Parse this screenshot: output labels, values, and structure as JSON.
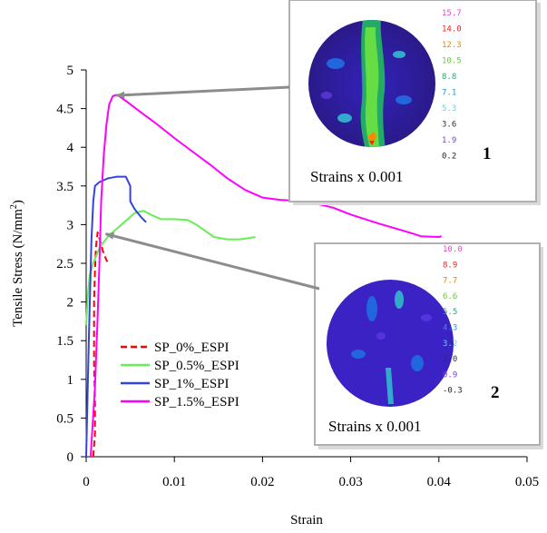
{
  "chart_data": {
    "type": "line",
    "xlabel": "Strain",
    "ylabel": "Tensile Stress (N/mm",
    "ylabel_sup": "2",
    "ylabel_close": ")",
    "xlim": [
      0,
      0.05
    ],
    "ylim": [
      0,
      5
    ],
    "x_ticks": [
      "0",
      "0.01",
      "0.02",
      "0.03",
      "0.04",
      "0.05"
    ],
    "y_ticks": [
      "0",
      "0.5",
      "1",
      "1.5",
      "2",
      "2.5",
      "3",
      "3.5",
      "4",
      "4.5",
      "5"
    ],
    "legend_placement": "lower-left",
    "series": [
      {
        "name": "SP_0%_ESPI",
        "color": "#ff0000",
        "dash": "dashed",
        "points": [
          [
            0.0008,
            0
          ],
          [
            0.001,
            0.3
          ],
          [
            0.001,
            0.7
          ],
          [
            0.0009,
            1.2
          ],
          [
            0.0009,
            1.6
          ],
          [
            0.0009,
            2.0
          ],
          [
            0.001,
            2.4
          ],
          [
            0.0011,
            2.7
          ],
          [
            0.0013,
            2.9
          ],
          [
            0.0016,
            2.78
          ],
          [
            0.002,
            2.62
          ],
          [
            0.0024,
            2.52
          ]
        ]
      },
      {
        "name": "SP_0.5%_ESPI",
        "color": "#66ee55",
        "dash": "solid",
        "points": [
          [
            0,
            1.7
          ],
          [
            0.0002,
            2.1
          ],
          [
            0.0004,
            2.35
          ],
          [
            0.0008,
            2.5
          ],
          [
            0.0015,
            2.7
          ],
          [
            0.0025,
            2.85
          ],
          [
            0.0035,
            2.95
          ],
          [
            0.0045,
            3.05
          ],
          [
            0.0055,
            3.15
          ],
          [
            0.0065,
            3.18
          ],
          [
            0.0075,
            3.12
          ],
          [
            0.0085,
            3.07
          ],
          [
            0.01,
            3.07
          ],
          [
            0.0115,
            3.06
          ],
          [
            0.0125,
            3.0
          ],
          [
            0.0135,
            2.92
          ],
          [
            0.0145,
            2.84
          ],
          [
            0.016,
            2.81
          ],
          [
            0.0175,
            2.81
          ],
          [
            0.0192,
            2.84
          ]
        ]
      },
      {
        "name": "SP_1%_ESPI",
        "color": "#3344dd",
        "dash": "solid",
        "points": [
          [
            0,
            0
          ],
          [
            0.0003,
            1.5
          ],
          [
            0.0006,
            2.8
          ],
          [
            0.0008,
            3.3
          ],
          [
            0.001,
            3.5
          ],
          [
            0.0015,
            3.55
          ],
          [
            0.0025,
            3.6
          ],
          [
            0.0035,
            3.62
          ],
          [
            0.0045,
            3.62
          ],
          [
            0.005,
            3.5
          ],
          [
            0.005,
            3.3
          ],
          [
            0.0055,
            3.2
          ],
          [
            0.0062,
            3.1
          ],
          [
            0.0068,
            3.03
          ]
        ]
      },
      {
        "name": "SP_1.5%_ESPI",
        "color": "#ff00ff",
        "dash": "solid",
        "points": [
          [
            0.0005,
            0
          ],
          [
            0.001,
            0.9
          ],
          [
            0.0013,
            1.8
          ],
          [
            0.0015,
            2.5
          ],
          [
            0.0017,
            3.3
          ],
          [
            0.002,
            3.9
          ],
          [
            0.0023,
            4.3
          ],
          [
            0.0026,
            4.55
          ],
          [
            0.003,
            4.66
          ],
          [
            0.0035,
            4.68
          ],
          [
            0.0045,
            4.6
          ],
          [
            0.006,
            4.47
          ],
          [
            0.008,
            4.3
          ],
          [
            0.01,
            4.12
          ],
          [
            0.012,
            3.95
          ],
          [
            0.014,
            3.78
          ],
          [
            0.016,
            3.6
          ],
          [
            0.018,
            3.45
          ],
          [
            0.02,
            3.35
          ],
          [
            0.022,
            3.32
          ],
          [
            0.025,
            3.3
          ],
          [
            0.028,
            3.22
          ],
          [
            0.03,
            3.13
          ],
          [
            0.033,
            3.02
          ],
          [
            0.036,
            2.92
          ],
          [
            0.038,
            2.85
          ],
          [
            0.04,
            2.84
          ],
          [
            0.0403,
            2.85
          ]
        ]
      }
    ],
    "insets": [
      {
        "caption": "Strains x 0.001",
        "number": "1",
        "scale": [
          "15.7",
          "14.0",
          "12.3",
          "10.5",
          "8.8",
          "7.1",
          "5.3",
          "3.6",
          "1.9",
          "0.2"
        ],
        "arrow_target": [
          0.003,
          4.67
        ]
      },
      {
        "caption": "Strains x 0.001",
        "number": "2",
        "scale": [
          "10.0",
          "8.9",
          "7.7",
          "6.6",
          "5.5",
          "4.3",
          "3.2",
          "2.0",
          "0.9",
          "-0.3"
        ],
        "arrow_target": [
          0.0018,
          2.88
        ]
      }
    ]
  }
}
